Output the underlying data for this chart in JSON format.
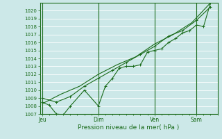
{
  "background_color": "#cce8e8",
  "plot_bg_color": "#cce8e8",
  "grid_color": "#ffffff",
  "line_color": "#1a6b1a",
  "ylim": [
    1007,
    1021
  ],
  "yticks": [
    1007,
    1008,
    1009,
    1010,
    1011,
    1012,
    1013,
    1014,
    1015,
    1016,
    1017,
    1018,
    1019,
    1020
  ],
  "xlabel": "Pression niveau de la mer( hPa )",
  "xlabel_color": "#1a6b1a",
  "tick_color": "#1a6b1a",
  "xtick_labels": [
    "Jeu",
    "Dim",
    "Ven",
    "Sam"
  ],
  "xtick_positions": [
    0,
    24,
    48,
    66
  ],
  "vline_positions": [
    0,
    24,
    48,
    66
  ],
  "line1_x": [
    0,
    3,
    6,
    9,
    12,
    18,
    24,
    27,
    30,
    33,
    36,
    39,
    42,
    45,
    48,
    51,
    54,
    57,
    60,
    63,
    66,
    69,
    72
  ],
  "line1_y": [
    1008.5,
    1008.1,
    1007.0,
    1006.9,
    1008.0,
    1010.0,
    1008.0,
    1010.5,
    1011.5,
    1012.8,
    1013.0,
    1013.0,
    1013.2,
    1014.8,
    1015.0,
    1015.2,
    1016.0,
    1016.5,
    1017.2,
    1017.5,
    1018.2,
    1018.0,
    1021.0
  ],
  "line2_x": [
    0,
    6,
    12,
    18,
    24,
    30,
    36,
    42,
    48,
    54,
    60,
    66,
    72
  ],
  "line2_y": [
    1009.0,
    1008.5,
    1009.2,
    1010.5,
    1011.5,
    1012.5,
    1013.5,
    1014.5,
    1015.5,
    1016.8,
    1017.5,
    1018.8,
    1020.5
  ],
  "line3_x": [
    0,
    8,
    16,
    24,
    32,
    40,
    48,
    56,
    64,
    72
  ],
  "line3_y": [
    1008.3,
    1009.5,
    1010.5,
    1012.0,
    1013.2,
    1014.2,
    1015.8,
    1017.0,
    1018.5,
    1021.0
  ],
  "xmin": -1,
  "xmax": 75,
  "marker_size": 3,
  "fontsize_ytick": 5,
  "fontsize_xtick": 5.5,
  "fontsize_xlabel": 6.5
}
